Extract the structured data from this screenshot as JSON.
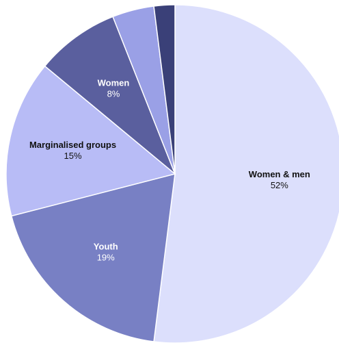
{
  "chart_data": {
    "type": "pie",
    "categories": [
      "Women & men",
      "Youth",
      "Marginalised groups",
      "Women",
      null,
      null
    ],
    "values": [
      52,
      19,
      15,
      8,
      4,
      2
    ],
    "value_labels": [
      "52%",
      "19%",
      "15%",
      "8%",
      null,
      null
    ],
    "colors": [
      "#dcdffc",
      "#7880c4",
      "#b8bcf6",
      "#5a5f9e",
      "#9aa0e6",
      "#3a4078"
    ]
  }
}
